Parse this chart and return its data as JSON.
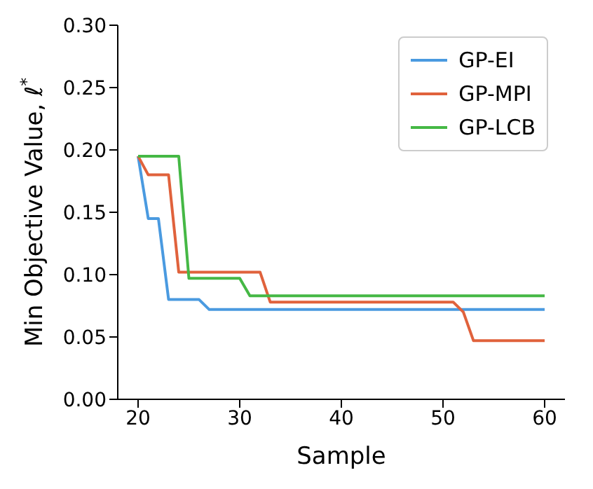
{
  "chart_data": {
    "type": "line",
    "xlabel": "Sample",
    "ylabel": "Min Objective Value, ℓ$^{*}$",
    "xlim": [
      18,
      62
    ],
    "xticks": [
      20,
      30,
      40,
      50,
      60
    ],
    "ylim": [
      0,
      0.3
    ],
    "yticks": [
      {
        "value": 0,
        "label": "0.00"
      },
      {
        "value": 0.05,
        "label": "0.05"
      },
      {
        "value": 0.1,
        "label": "0.10"
      },
      {
        "value": 0.15,
        "label": "0.15"
      },
      {
        "value": 0.2,
        "label": "0.20"
      },
      {
        "value": 0.25,
        "label": "0.25"
      },
      {
        "value": 0.3,
        "label": "0.30"
      }
    ],
    "grid": false,
    "legend": "top right",
    "marker": "none",
    "line_style": "solid",
    "series": [
      {
        "name": "GP-EI",
        "color": "#4a9ae0",
        "x": [
          20,
          21,
          22,
          23,
          26,
          27,
          60
        ],
        "values": [
          0.195,
          0.145,
          0.145,
          0.08,
          0.08,
          0.072,
          0.072
        ]
      },
      {
        "name": "GP-MPI",
        "color": "#e0623c",
        "x": [
          20,
          21,
          23,
          24,
          32,
          33,
          51,
          52,
          53,
          60
        ],
        "values": [
          0.195,
          0.18,
          0.18,
          0.102,
          0.102,
          0.078,
          0.078,
          0.07,
          0.047,
          0.047
        ]
      },
      {
        "name": "GP-LCB",
        "color": "#45b845",
        "x": [
          20,
          24,
          25,
          30,
          31,
          60
        ],
        "values": [
          0.195,
          0.195,
          0.097,
          0.097,
          0.083,
          0.083
        ]
      }
    ]
  }
}
